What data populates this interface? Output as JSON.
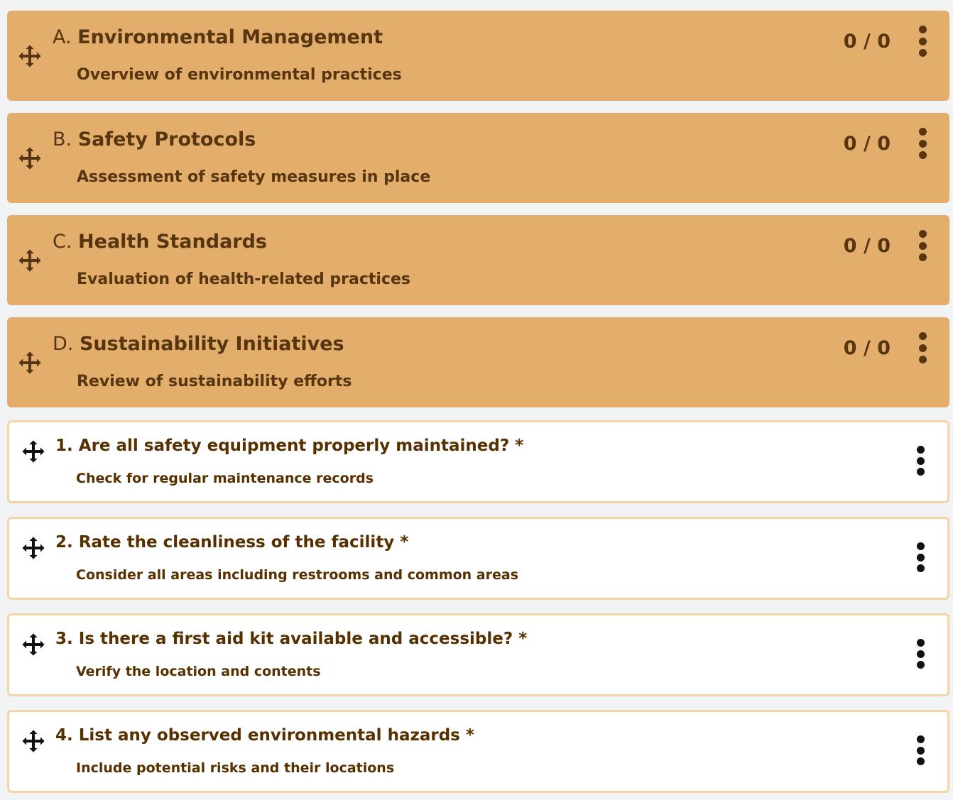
{
  "colors": {
    "section_bg": "#e3ae6b",
    "section_text": "#573510",
    "question_border": "#f3d6a6",
    "question_text": "#573000"
  },
  "icons": {
    "drag": "move-arrows-icon",
    "menu": "kebab-menu-icon"
  },
  "sections": [
    {
      "letter": "A.",
      "title": "Environmental Management",
      "description": "Overview of environmental practices",
      "score": "0 / 0"
    },
    {
      "letter": "B.",
      "title": "Safety Protocols",
      "description": "Assessment of safety measures in place",
      "score": "0 / 0"
    },
    {
      "letter": "C.",
      "title": "Health Standards",
      "description": "Evaluation of health-related practices",
      "score": "0 / 0"
    },
    {
      "letter": "D.",
      "title": "Sustainability Initiatives",
      "description": "Review of sustainability efforts",
      "score": "0 / 0"
    }
  ],
  "questions": [
    {
      "number": "1.",
      "title": "Are all safety equipment properly maintained?",
      "required": "*",
      "description": "Check for regular maintenance records"
    },
    {
      "number": "2.",
      "title": "Rate the cleanliness of the facility",
      "required": "*",
      "description": "Consider all areas including restrooms and common areas"
    },
    {
      "number": "3.",
      "title": "Is there a first aid kit available and accessible?",
      "required": "*",
      "description": "Verify the location and contents"
    },
    {
      "number": "4.",
      "title": "List any observed environmental hazards",
      "required": "*",
      "description": "Include potential risks and their locations"
    }
  ]
}
